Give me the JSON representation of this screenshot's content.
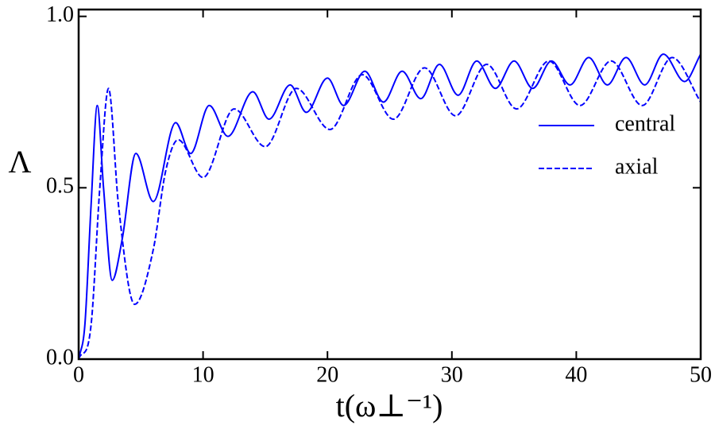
{
  "chart_data": {
    "type": "line",
    "x_label": "t(ω⊥⁻¹)",
    "y_label": "Λ",
    "xlim": [
      0,
      50
    ],
    "xticks": [
      0,
      10,
      20,
      30,
      40,
      50
    ],
    "ylim": [
      0,
      1.02
    ],
    "yticks": [
      {
        "value": 0,
        "label": "0.0"
      },
      {
        "value": 0.5,
        "label": "0.5"
      },
      {
        "value": 1,
        "label": "1.0"
      }
    ],
    "legend": "right",
    "series": [
      {
        "name": "central",
        "color": "#0000ff",
        "linestyle": "solid",
        "x": [
          0,
          0.5,
          1,
          1.5,
          2,
          2.7,
          3.5,
          4.6,
          6,
          7.8,
          9,
          10.5,
          12,
          14,
          15.3,
          17,
          18.3,
          20,
          21.3,
          23,
          24.5,
          26,
          27.5,
          29,
          30.5,
          32,
          33.5,
          35,
          36.5,
          38,
          39.5,
          41,
          42.5,
          44,
          45.5,
          47,
          48.7,
          50
        ],
        "values": [
          0,
          0.1,
          0.45,
          0.74,
          0.5,
          0.23,
          0.35,
          0.6,
          0.46,
          0.69,
          0.6,
          0.74,
          0.65,
          0.78,
          0.7,
          0.8,
          0.72,
          0.82,
          0.74,
          0.84,
          0.75,
          0.84,
          0.76,
          0.86,
          0.77,
          0.87,
          0.79,
          0.87,
          0.79,
          0.87,
          0.8,
          0.88,
          0.8,
          0.88,
          0.8,
          0.89,
          0.81,
          0.89
        ]
      },
      {
        "name": "axial",
        "color": "#0000ff",
        "linestyle": "dashed",
        "x": [
          0,
          1,
          1.7,
          2.4,
          3.2,
          4.5,
          6,
          7,
          8,
          10,
          12.5,
          15,
          17.5,
          20.2,
          22.8,
          25.3,
          27.8,
          30.3,
          32.8,
          35.2,
          37.8,
          40.3,
          42.8,
          45.3,
          47.7,
          50
        ],
        "values": [
          0,
          0.1,
          0.5,
          0.79,
          0.45,
          0.16,
          0.32,
          0.55,
          0.64,
          0.53,
          0.73,
          0.62,
          0.79,
          0.67,
          0.83,
          0.7,
          0.85,
          0.71,
          0.86,
          0.73,
          0.87,
          0.74,
          0.87,
          0.74,
          0.88,
          0.75
        ]
      }
    ]
  }
}
